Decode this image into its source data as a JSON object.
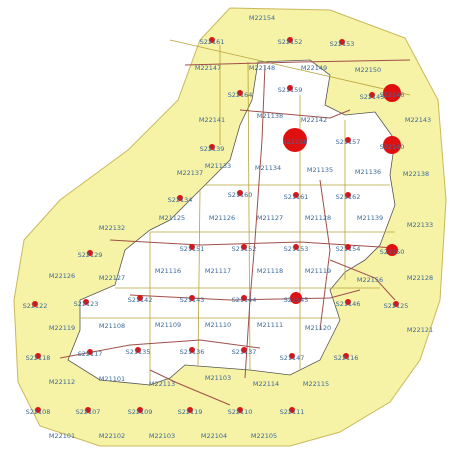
{
  "zones": [
    "M22154",
    "M22147",
    "M22148",
    "M22149",
    "M22150",
    "M21138",
    "M22142",
    "M22141",
    "M22143",
    "M22137",
    "M21133",
    "M21134",
    "M21135",
    "M21136",
    "M22138",
    "M21125",
    "M21126",
    "M21127",
    "M21128",
    "M21139",
    "M22133",
    "M22132",
    "M21116",
    "M21117",
    "M21118",
    "M21119",
    "M22126",
    "M22127",
    "M22156",
    "M22128",
    "M22119",
    "M21108",
    "M21109",
    "M21110",
    "M21111",
    "M21120",
    "M22121",
    "M22112",
    "M21101",
    "M22113",
    "M21103",
    "M22114",
    "M22115",
    "M22101",
    "M22102",
    "M22103",
    "M22104",
    "M22105"
  ],
  "stations": [
    "S22161",
    "S22152",
    "S22153",
    "S22164",
    "S21159",
    "S22145",
    "S22146",
    "S21158",
    "S21157",
    "S22140",
    "S22139",
    "S22134",
    "S21160",
    "S21161",
    "S21162",
    "S22129",
    "S21151",
    "S21152",
    "S21153",
    "S21154",
    "S21150",
    "S22122",
    "S22123",
    "S21142",
    "S21143",
    "S21144",
    "S21145",
    "S21146",
    "S22125",
    "S22118",
    "S22117",
    "S21135",
    "S21136",
    "S21137",
    "S21147",
    "S22116",
    "S22108",
    "S22107",
    "S22109",
    "S22119",
    "S22110",
    "S22111"
  ]
}
